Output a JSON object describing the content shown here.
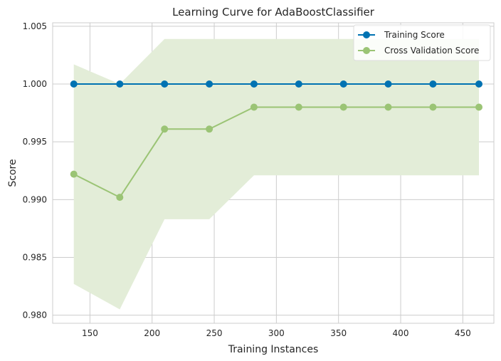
{
  "chart_data": {
    "type": "line",
    "title": "Learning Curve for AdaBoostClassifier",
    "xlabel": "Training Instances",
    "ylabel": "Score",
    "xlim": [
      120,
      475
    ],
    "ylim": [
      0.9793,
      1.0053
    ],
    "xticks": [
      150,
      200,
      250,
      300,
      350,
      400,
      450
    ],
    "yticks": [
      0.98,
      0.985,
      0.99,
      0.995,
      1.0,
      1.005
    ],
    "ytick_labels": [
      "0.980",
      "0.985",
      "0.990",
      "0.995",
      "1.000",
      "1.005"
    ],
    "grid": true,
    "legend_position": "top-right",
    "x": [
      137,
      174,
      210,
      246,
      282,
      318,
      354,
      390,
      426,
      463
    ],
    "series": [
      {
        "name": "Training Score",
        "color": "#0072B2",
        "values": [
          1.0,
          1.0,
          1.0,
          1.0,
          1.0,
          1.0,
          1.0,
          1.0,
          1.0,
          1.0
        ]
      },
      {
        "name": "Cross Validation Score",
        "color": "#9BC475",
        "values": [
          0.9922,
          0.9902,
          0.9961,
          0.9961,
          0.998,
          0.998,
          0.998,
          0.998,
          0.998,
          0.998
        ],
        "band_upper": [
          1.0017,
          1.0,
          1.0039,
          1.0039,
          1.0039,
          1.0039,
          1.0039,
          1.0039,
          1.0039,
          1.0039
        ],
        "band_lower": [
          0.9827,
          0.9805,
          0.9883,
          0.9883,
          0.9921,
          0.9921,
          0.9921,
          0.9921,
          0.9921,
          0.9921
        ],
        "band_color": "#E3EDD8"
      }
    ]
  }
}
